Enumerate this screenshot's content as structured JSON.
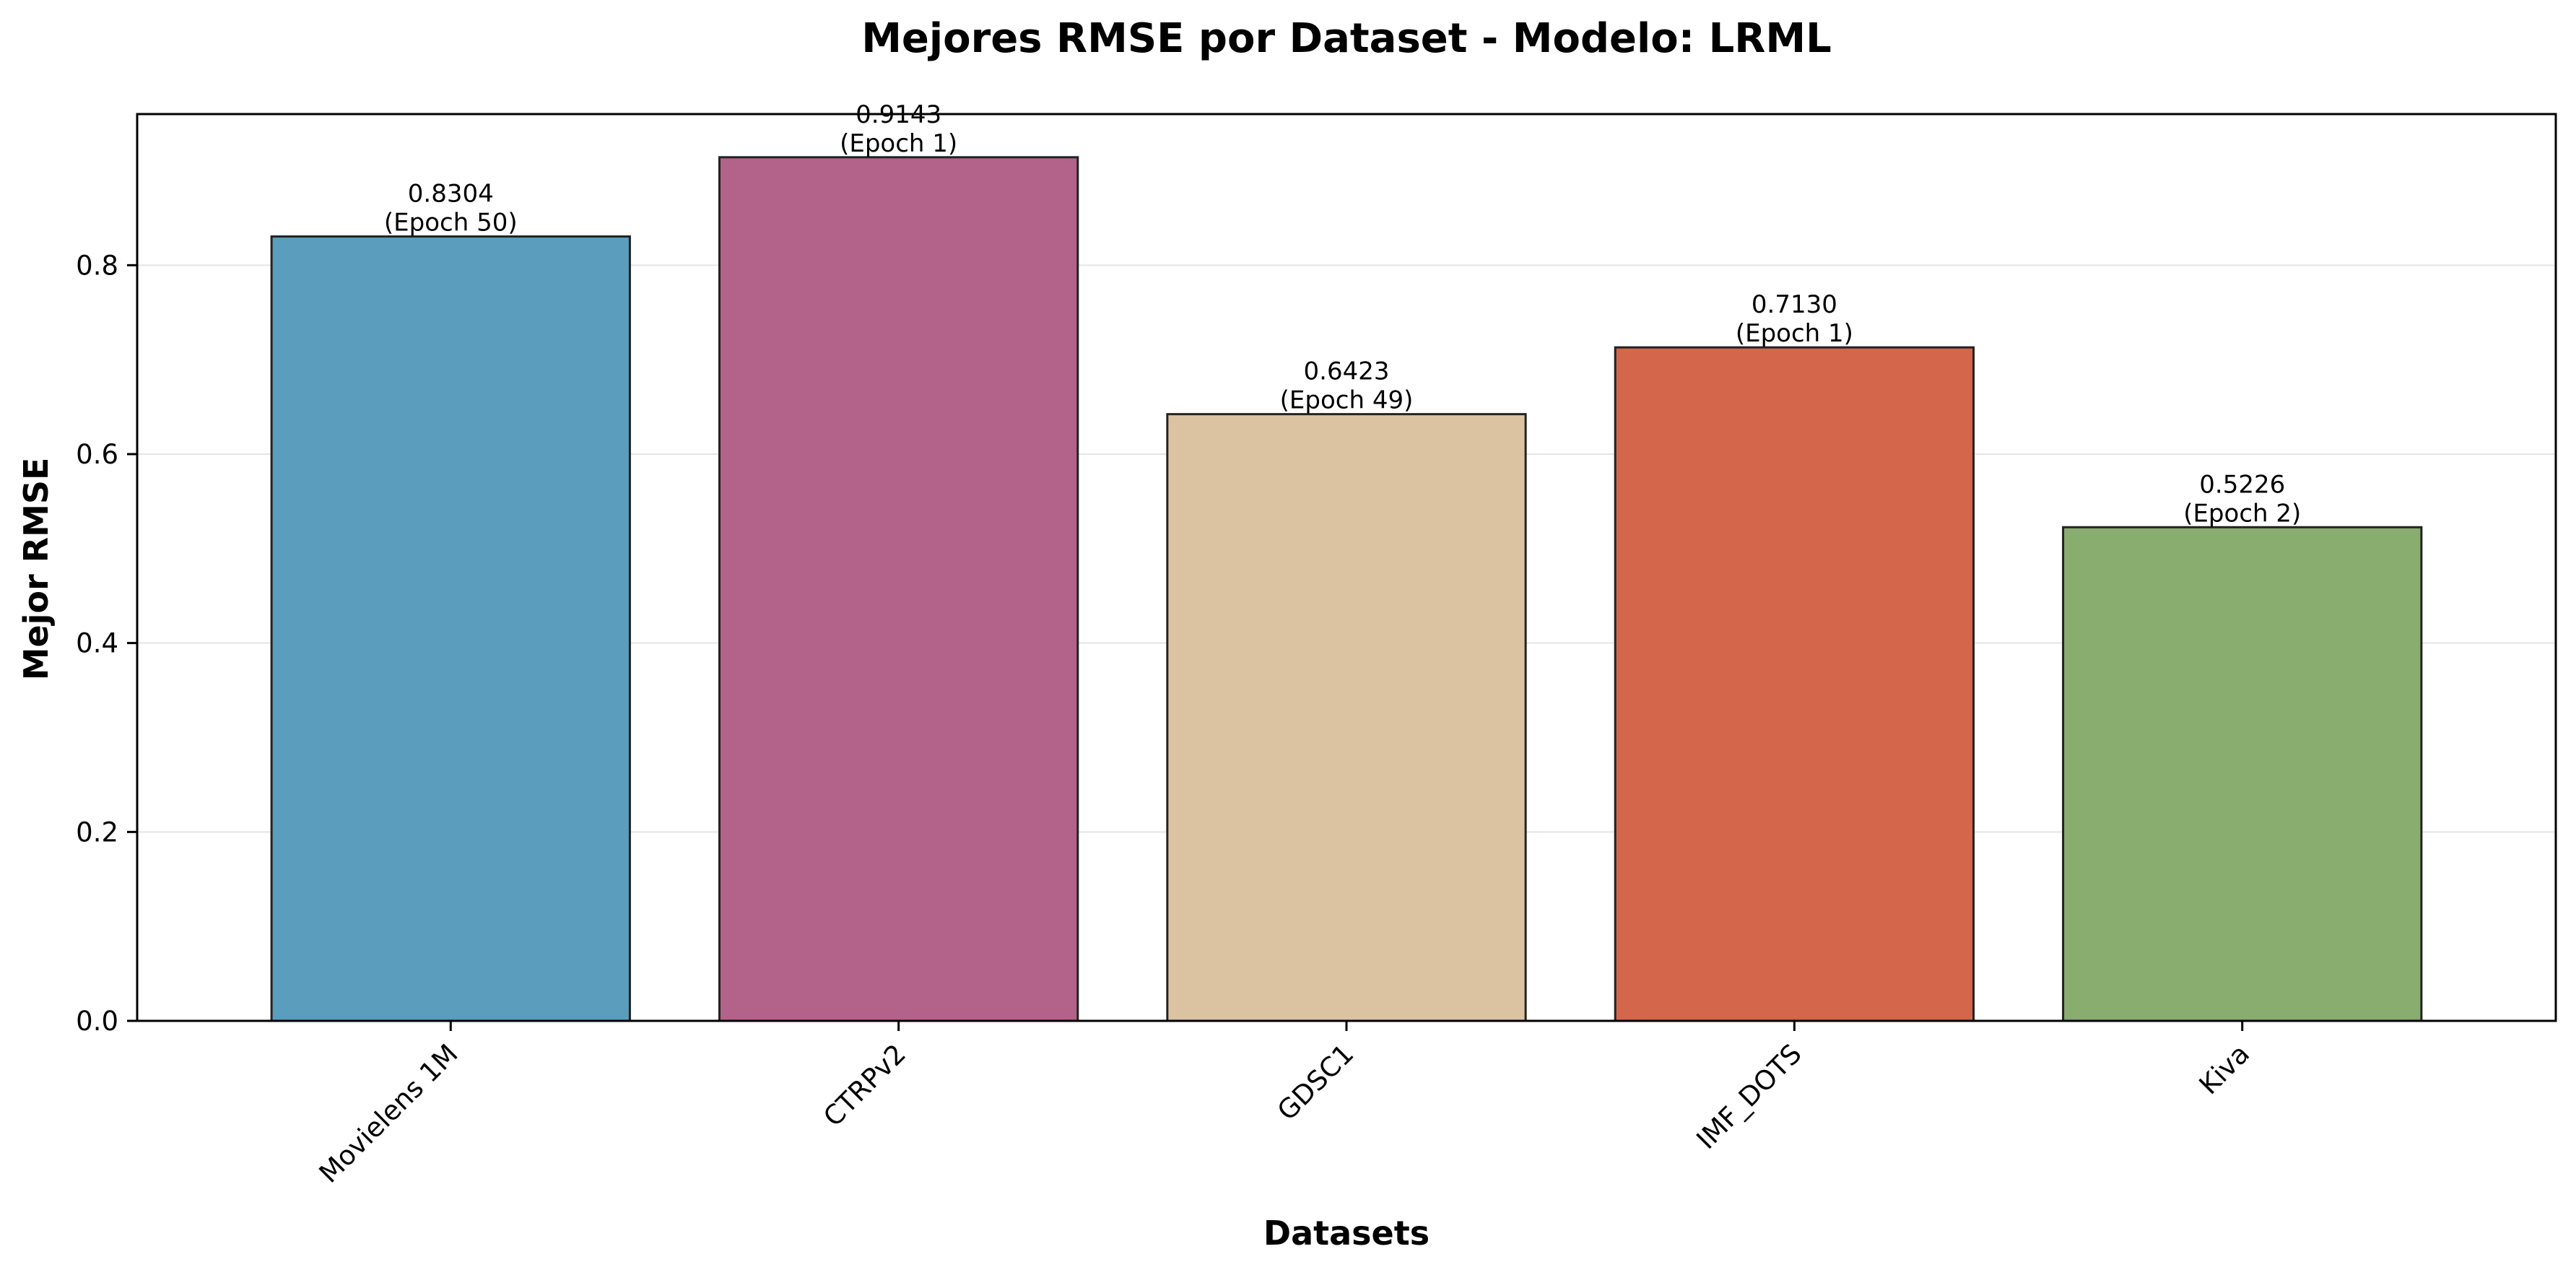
{
  "chart_data": {
    "type": "bar",
    "title": "Mejores RMSE por Dataset - Modelo: LRML",
    "xlabel": "Datasets",
    "ylabel": "Mejor RMSE",
    "ylim": [
      0,
      0.96
    ],
    "yticks": [
      "0.0",
      "0.2",
      "0.4",
      "0.6",
      "0.8"
    ],
    "ytick_values": [
      0,
      0.2,
      0.4,
      0.6,
      0.8
    ],
    "grid": "horizontal",
    "categories": [
      "Movielens 1M",
      "CTRPv2",
      "GDSC1",
      "IMF_DOTS",
      "Kiva"
    ],
    "values": [
      0.8304,
      0.9143,
      0.6423,
      0.713,
      0.5226
    ],
    "value_labels": [
      "0.8304",
      "0.9143",
      "0.6423",
      "0.7130",
      "0.5226"
    ],
    "epoch_labels": [
      "(Epoch 50)",
      "(Epoch 1)",
      "(Epoch 49)",
      "(Epoch 1)",
      "(Epoch 2)"
    ],
    "colors": [
      "#5A9DBD",
      "#B3628A",
      "#DBC3A2",
      "#D3664B",
      "#89AD6F"
    ],
    "edge_color": "#222222",
    "grid_color": "#E5E5E5"
  }
}
